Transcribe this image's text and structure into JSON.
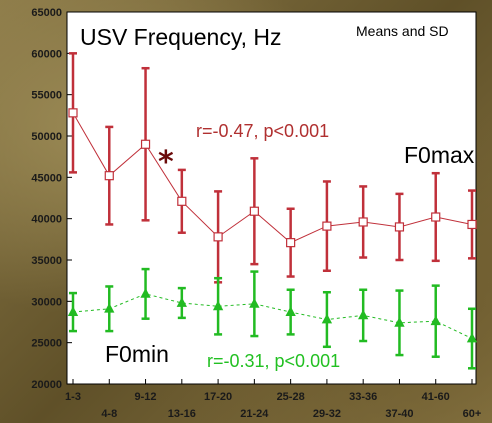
{
  "chart_data": {
    "type": "line",
    "title": "USV Frequency, Hz",
    "note": "Means and SD",
    "ylim": [
      20000,
      65000
    ],
    "yticks": [
      20000,
      25000,
      30000,
      35000,
      40000,
      45000,
      50000,
      55000,
      60000,
      65000
    ],
    "yticks_labels": [
      "20000",
      "25000",
      "30000",
      "35000",
      "40000",
      "45000",
      "50000",
      "55000",
      "60000",
      "65000"
    ],
    "categories": [
      "1-3",
      "4-8",
      "9-12",
      "13-16",
      "17-20",
      "21-24",
      "25-28",
      "29-32",
      "33-36",
      "37-40",
      "41-60",
      "60+"
    ],
    "grid": false,
    "series": [
      {
        "name": "F0max",
        "color": "#c0303a",
        "marker": "square",
        "mean": [
          52800,
          45200,
          49000,
          42100,
          37800,
          40900,
          37100,
          39100,
          39600,
          39000,
          40200,
          39300
        ],
        "sd": [
          7200,
          5900,
          9200,
          3800,
          5500,
          6400,
          4100,
          5400,
          4300,
          4000,
          5300,
          4100
        ]
      },
      {
        "name": "F0min",
        "color": "#22bb22",
        "marker": "triangle",
        "mean": [
          28700,
          29100,
          30900,
          29800,
          29400,
          29700,
          28700,
          27800,
          28300,
          27400,
          27600,
          25500
        ],
        "sd": [
          2300,
          2700,
          3000,
          1800,
          3400,
          3900,
          2700,
          3300,
          3100,
          3900,
          4300,
          3600
        ]
      }
    ],
    "annotations": {
      "max_corr": "r=-0.47, p<0.001",
      "min_corr": "r=-0.31, p<0.001",
      "max_label": "F0max",
      "min_label": "F0min",
      "significance": "*"
    }
  }
}
